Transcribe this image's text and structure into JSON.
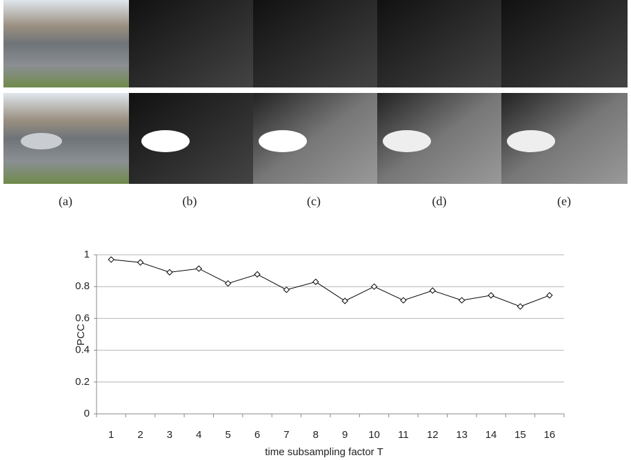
{
  "panels": {
    "labels": [
      "(a)",
      "(b)",
      "(c)",
      "(d)",
      "(e)"
    ]
  },
  "chart_data": {
    "type": "line",
    "categories": [
      "1",
      "2",
      "3",
      "4",
      "5",
      "6",
      "7",
      "8",
      "9",
      "10",
      "11",
      "12",
      "13",
      "14",
      "15",
      "16"
    ],
    "values": [
      0.97,
      0.952,
      0.89,
      0.913,
      0.82,
      0.877,
      0.78,
      0.83,
      0.71,
      0.8,
      0.714,
      0.775,
      0.714,
      0.745,
      0.675,
      0.745
    ],
    "color": "#000000",
    "y_label": "PCC",
    "x_label": "time subsampling factor T",
    "ylim": [
      0,
      1
    ],
    "yticks": [
      0,
      {
        "value": 0.2,
        "label": "0.2"
      },
      {
        "value": 0.4,
        "label": "0.4"
      },
      {
        "value": 0.6,
        "label": "0.6"
      },
      {
        "value": 0.8,
        "label": "0.8"
      },
      1
    ],
    "grid": true
  }
}
